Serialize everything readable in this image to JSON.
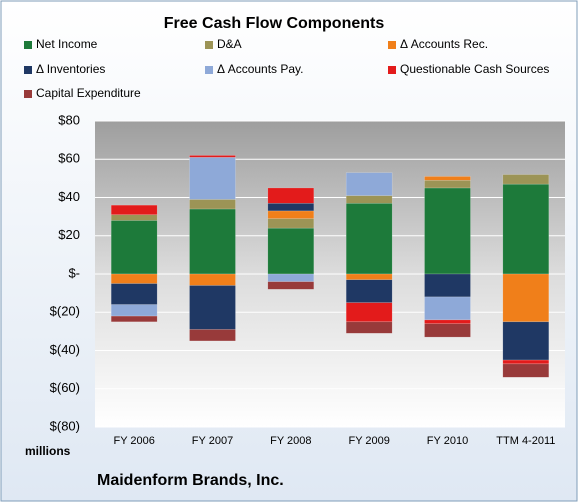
{
  "chart_data": {
    "type": "stacked_bar",
    "title": "Free Cash Flow Components",
    "y_axis_label": "millions",
    "footer": "Maidenform Brands, Inc.",
    "categories": [
      "FY 2006",
      "FY 2007",
      "FY 2008",
      "FY 2009",
      "FY 2010",
      "TTM 4-2011"
    ],
    "series": [
      {
        "name": "Net Income",
        "color": "#1d7a3a",
        "values": [
          28,
          34,
          24,
          37,
          45,
          47
        ]
      },
      {
        "name": "D&A",
        "color": "#9c9456",
        "values": [
          3,
          5,
          5,
          4,
          4,
          5
        ]
      },
      {
        "name": "Δ Accounts Rec.",
        "color": "#f07f1a",
        "values": [
          -5,
          -6,
          4,
          -3,
          2,
          -25
        ]
      },
      {
        "name": "Δ Inventories",
        "color": "#1f3864",
        "values": [
          -11,
          -23,
          4,
          -12,
          -12,
          -20
        ]
      },
      {
        "name": "Δ Accounts Pay.",
        "color": "#8ea9d8",
        "values": [
          -6,
          22,
          -4,
          12,
          -12,
          0
        ]
      },
      {
        "name": "Questionable Cash Sources",
        "color": "#e31b1b",
        "values": [
          5,
          1,
          8,
          -10,
          -2,
          -2
        ]
      },
      {
        "name": "Capital Expenditure",
        "color": "#983a3a",
        "values": [
          -3,
          -6,
          -4,
          -6,
          -7,
          -7
        ]
      }
    ],
    "ylim": [
      -80,
      80
    ],
    "yticks": [
      {
        "value": -80,
        "label": "$(80)"
      },
      {
        "value": -60,
        "label": "$(60)"
      },
      {
        "value": -40,
        "label": "$(40)"
      },
      {
        "value": -20,
        "label": "$(20)"
      },
      {
        "value": 0,
        "label": "$-"
      },
      {
        "value": 20,
        "label": "$20"
      },
      {
        "value": 40,
        "label": "$40"
      },
      {
        "value": 60,
        "label": "$60"
      },
      {
        "value": 80,
        "label": "$80"
      }
    ],
    "grid": true
  }
}
